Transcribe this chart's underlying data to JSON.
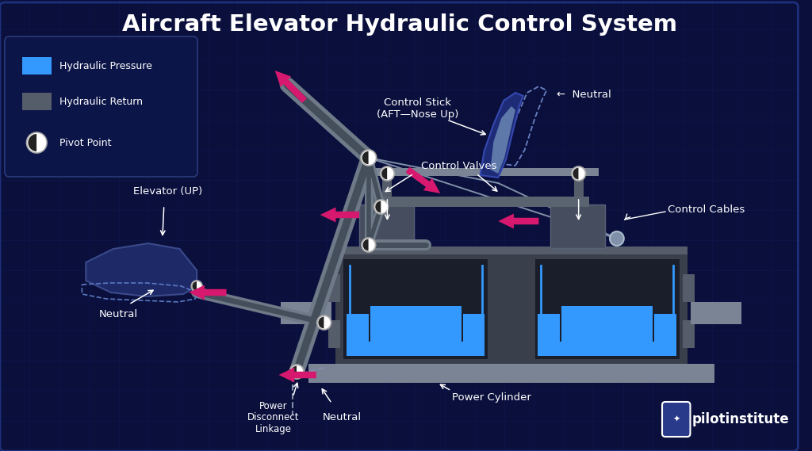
{
  "title": "Aircraft Elevator Hydraulic Control System",
  "bg_color": "#0a0f3c",
  "grid_color": "#111d5a",
  "text_color": "#ffffff",
  "blue_color": "#3399ff",
  "dark_gray": "#3a3f4c",
  "med_gray": "#555d6a",
  "light_gray": "#7a8494",
  "arm_outer": "#6e7a88",
  "arm_inner": "#454f5c",
  "pink_color": "#d6186e",
  "cable_color": "#8090a8",
  "labels": {
    "title": "Aircraft Elevator Hydraulic Control System",
    "ctrl_stick": "Control Stick\n(AFT—Nose Up)",
    "neutral_tr": "←  Neutral",
    "elevator_up": "Elevator (UP)",
    "neutral_lft": "Neutral",
    "ctrl_valves": "Control Valves",
    "ctrl_cables": "Control Cables",
    "pwr_cylinder": "Power Cylinder",
    "pwr_disconnect": "Power\nDisconnect\nLinkage",
    "neutral_bot": "Neutral",
    "pilot": "pilotinstitute",
    "hydr_pressure": "Hydraulic Pressure",
    "hydr_return": "Hydraulic Return",
    "pivot_pt": "Pivot Point"
  }
}
